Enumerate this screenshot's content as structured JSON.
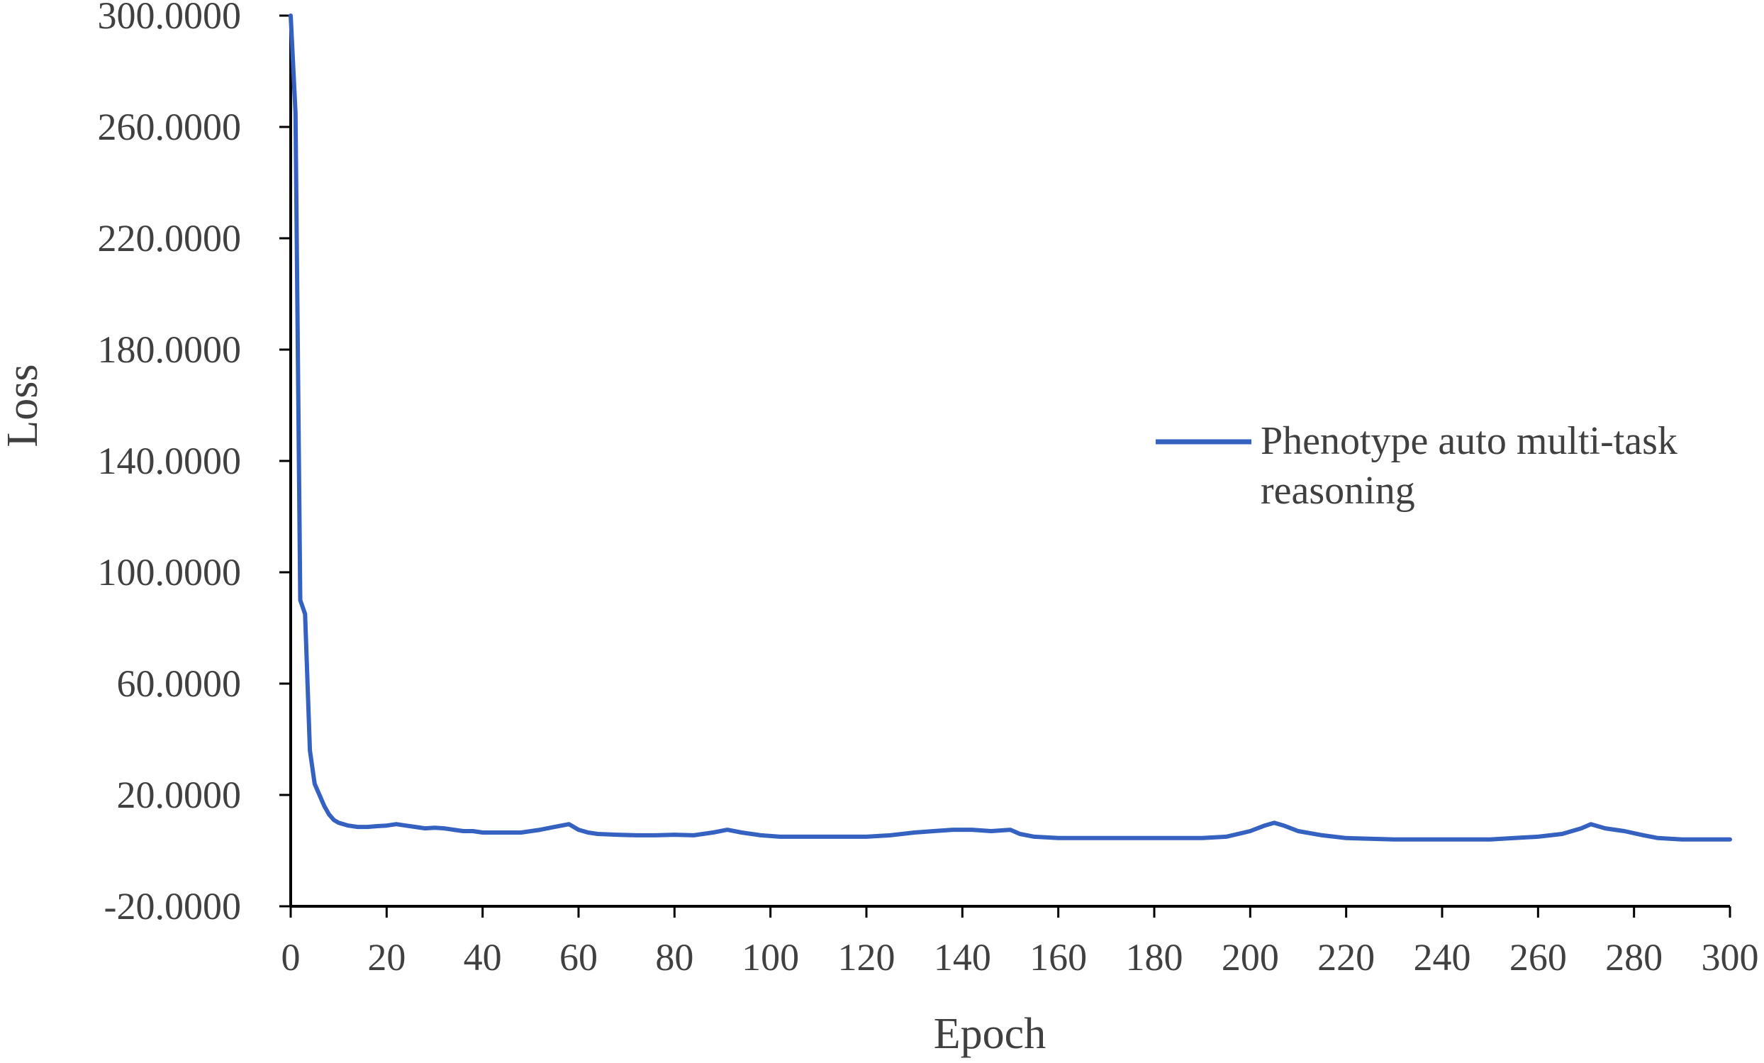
{
  "chart_data": {
    "type": "line",
    "title": "",
    "xlabel": "Epoch",
    "ylabel": "Loss",
    "xlim": [
      0,
      300
    ],
    "ylim": [
      -20,
      300
    ],
    "x_ticks": [
      0,
      20,
      40,
      60,
      80,
      100,
      120,
      140,
      160,
      180,
      200,
      220,
      240,
      260,
      280,
      300
    ],
    "x_tick_labels": [
      "0",
      "20",
      "40",
      "60",
      "80",
      "100",
      "120",
      "140",
      "160",
      "180",
      "200",
      "220",
      "240",
      "260",
      "280",
      "300"
    ],
    "y_ticks": [
      -20,
      20,
      60,
      100,
      140,
      180,
      220,
      260,
      300
    ],
    "y_tick_labels": [
      "-20.0000",
      "20.0000",
      "60.0000",
      "100.0000",
      "140.0000",
      "180.0000",
      "220.0000",
      "260.0000",
      "300.0000"
    ],
    "grid": false,
    "legend": {
      "placement": "right",
      "entries": [
        "Phenotype auto multi-task reasoning"
      ]
    },
    "series": [
      {
        "name": "Phenotype auto multi-task reasoning",
        "color": "#3561c0",
        "x": [
          0,
          1,
          2,
          3,
          4,
          5,
          6,
          7,
          8,
          9,
          10,
          12,
          14,
          16,
          18,
          20,
          22,
          24,
          26,
          28,
          30,
          32,
          34,
          36,
          38,
          40,
          44,
          48,
          52,
          55,
          58,
          60,
          62,
          64,
          68,
          72,
          76,
          80,
          84,
          88,
          91,
          94,
          98,
          102,
          106,
          110,
          115,
          120,
          125,
          130,
          134,
          138,
          142,
          146,
          150,
          152,
          155,
          160,
          165,
          170,
          175,
          180,
          185,
          190,
          195,
          200,
          203,
          205,
          207,
          210,
          215,
          220,
          230,
          240,
          250,
          255,
          260,
          265,
          269,
          271,
          274,
          278,
          282,
          285,
          290,
          295,
          300
        ],
        "y": [
          300,
          265,
          90,
          85,
          36,
          24,
          20,
          16,
          13,
          11,
          10,
          9,
          8.5,
          8.5,
          8.8,
          9,
          9.5,
          9,
          8.5,
          8,
          8.2,
          8,
          7.5,
          7,
          7,
          6.5,
          6.5,
          6.5,
          7.5,
          8.5,
          9.5,
          7.5,
          6.5,
          6,
          5.7,
          5.5,
          5.5,
          5.7,
          5.5,
          6.5,
          7.5,
          6.5,
          5.5,
          5,
          5,
          5,
          5,
          5,
          5.5,
          6.5,
          7,
          7.5,
          7.5,
          7,
          7.5,
          6,
          5,
          4.5,
          4.5,
          4.5,
          4.5,
          4.5,
          4.5,
          4.5,
          5,
          7,
          9,
          10,
          9,
          7,
          5.5,
          4.5,
          4,
          4,
          4,
          4.5,
          5,
          6,
          8,
          9.5,
          8,
          7,
          5.5,
          4.5,
          4,
          4,
          4
        ]
      }
    ]
  }
}
